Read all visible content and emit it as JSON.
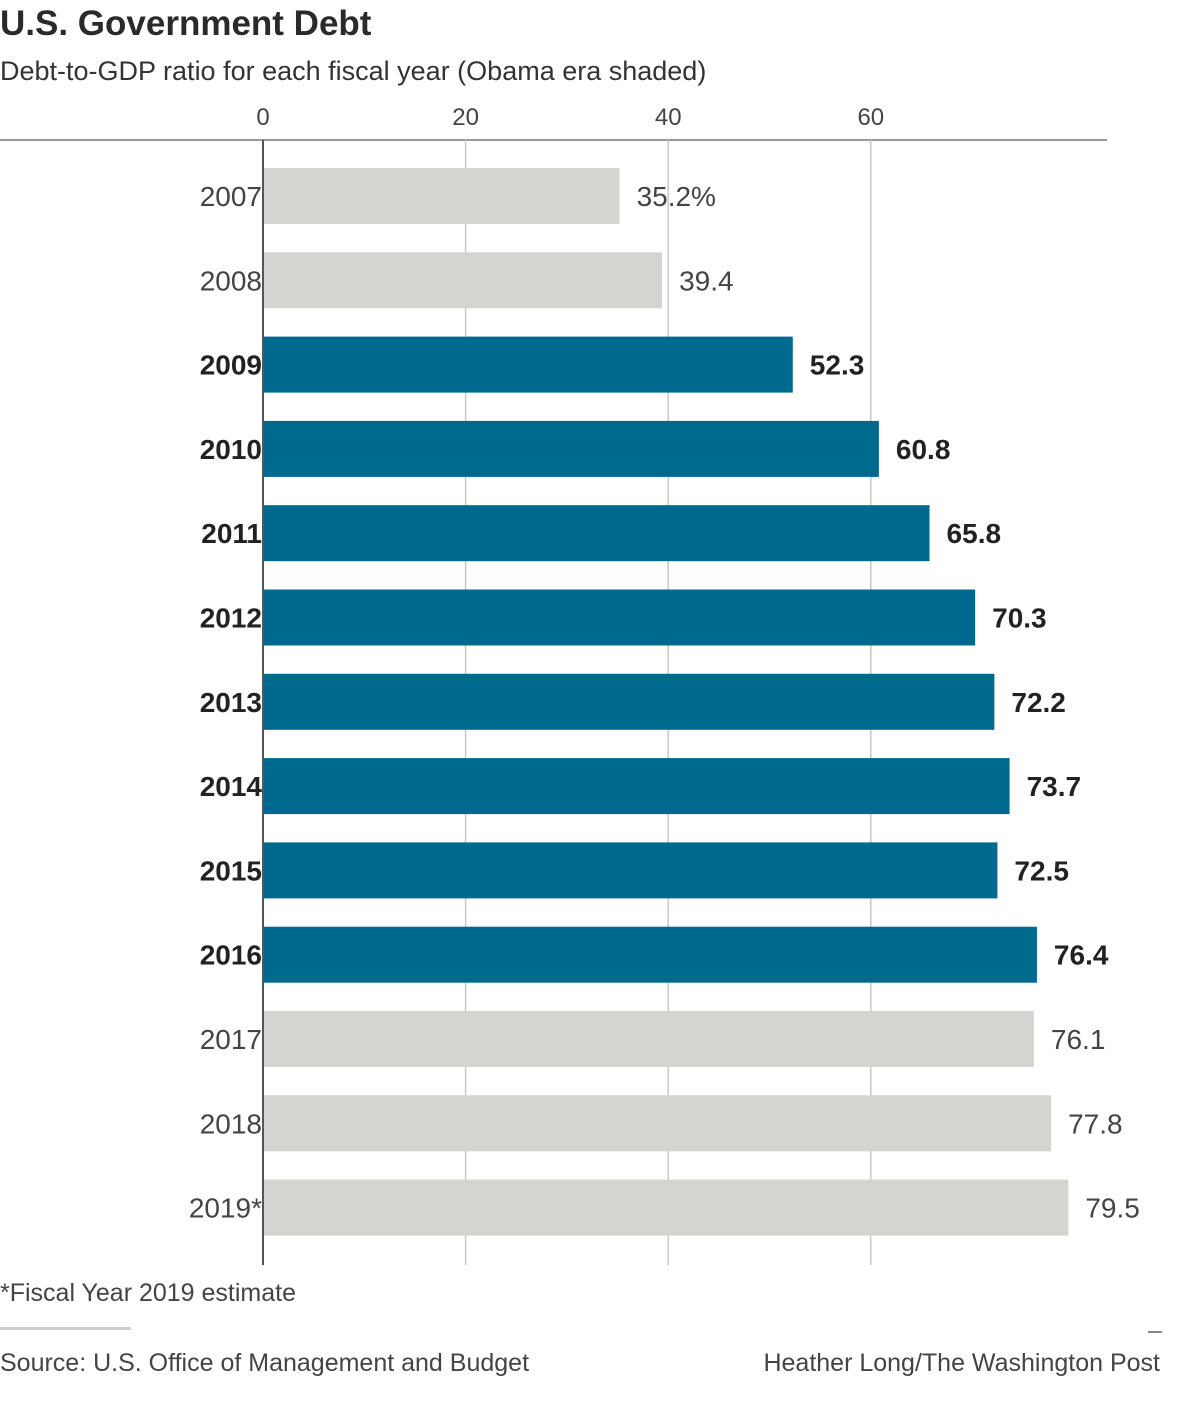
{
  "chart_data": {
    "type": "bar",
    "orientation": "horizontal",
    "title": "U.S. Government Debt",
    "subtitle": "Debt-to-GDP ratio for each fiscal year (Obama era shaded)",
    "categories": [
      "2007",
      "2008",
      "2009",
      "2010",
      "2011",
      "2012",
      "2013",
      "2014",
      "2015",
      "2016",
      "2017",
      "2018",
      "2019*"
    ],
    "values": [
      35.2,
      39.4,
      52.3,
      60.8,
      65.8,
      70.3,
      72.2,
      73.7,
      72.5,
      76.4,
      76.1,
      77.8,
      79.5
    ],
    "value_labels": [
      "35.2%",
      "39.4",
      "52.3",
      "60.8",
      "65.8",
      "70.3",
      "72.2",
      "73.7",
      "72.5",
      "76.4",
      "76.1",
      "77.8",
      "79.5"
    ],
    "highlighted": [
      false,
      false,
      true,
      true,
      true,
      true,
      true,
      true,
      true,
      true,
      false,
      false,
      false
    ],
    "xticks": [
      0,
      20,
      40,
      60
    ],
    "xtick_labels": [
      "0",
      "20",
      "40",
      "60"
    ],
    "xlim": [
      0,
      83.3
    ],
    "axis_position": "top",
    "grid": true,
    "colors": {
      "highlight": "#006a8e",
      "default": "#d4d4d0",
      "grid": "#c8c8c8",
      "axis": "#999999"
    }
  },
  "footnote": "*Fiscal Year 2019 estimate",
  "source": "Source: U.S. Office of Management and Budget",
  "credit": "Heather Long/The Washington Post"
}
